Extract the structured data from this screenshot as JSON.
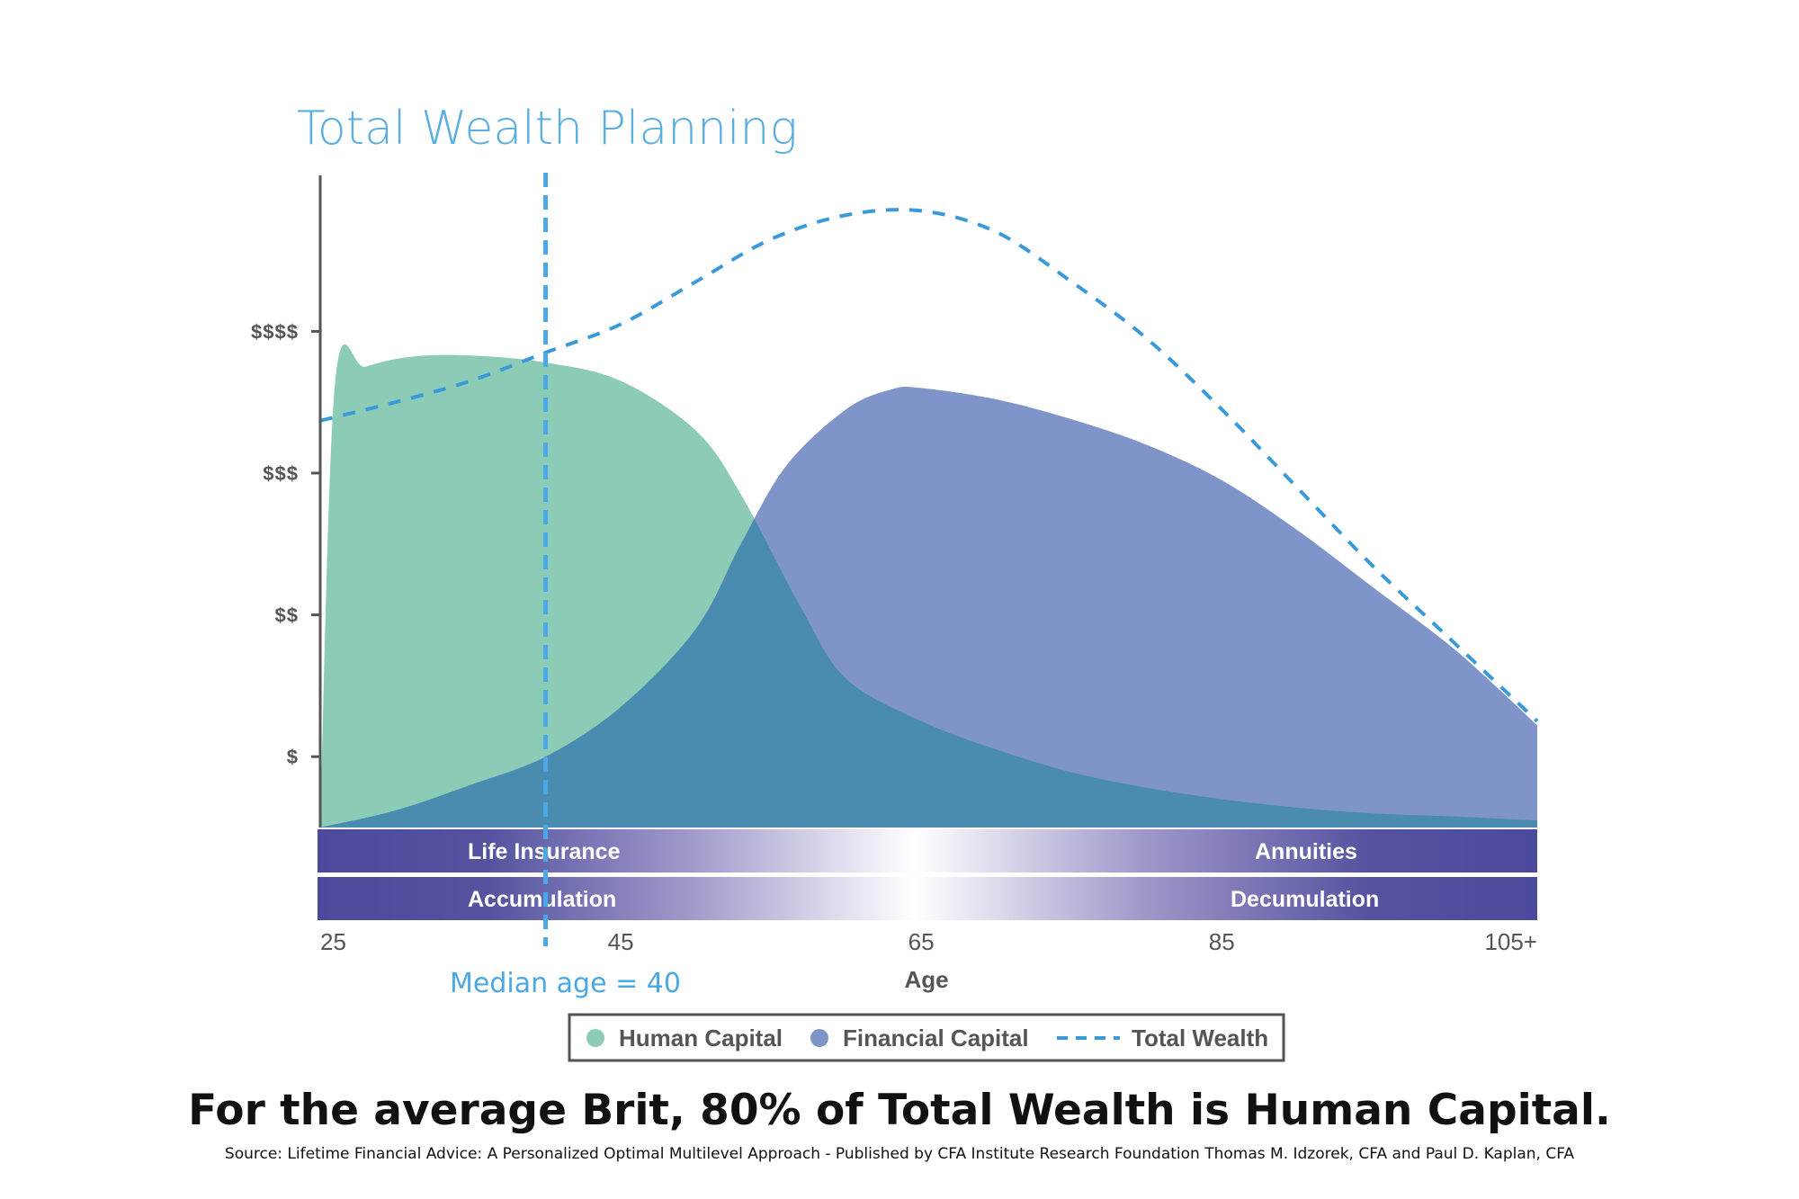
{
  "colors": {
    "title": "#5aaee0",
    "human_capital": "#8ccbb6",
    "financial_capital": "#7f94c8",
    "overlap": "#4a8bb0",
    "total_wealth": "#3a9ad9",
    "median_line": "#4aa8e6",
    "band_dark": "#4b4a9c",
    "band_light": "#ffffff",
    "axis": "#555555"
  },
  "chart_data": {
    "type": "area",
    "title": "Total Wealth Planning",
    "xlabel": "Age",
    "ylabel": "",
    "x_ticks": [
      "25",
      "45",
      "65",
      "85",
      "105+"
    ],
    "y_ticks": [
      "$",
      "$$",
      "$$$",
      "$$$$"
    ],
    "xlim": [
      25,
      106
    ],
    "ylim": [
      0,
      4.6
    ],
    "series": [
      {
        "name": "Human Capital",
        "style": "area",
        "x": [
          25,
          26,
          28,
          31,
          35,
          40,
          45,
          50,
          53,
          57,
          60,
          65,
          70,
          75,
          80,
          85,
          90,
          95,
          100,
          106
        ],
        "y": [
          0.05,
          3.15,
          3.25,
          3.32,
          3.33,
          3.28,
          3.15,
          2.8,
          2.35,
          1.55,
          1.05,
          0.75,
          0.55,
          0.39,
          0.28,
          0.2,
          0.14,
          0.1,
          0.08,
          0.05
        ]
      },
      {
        "name": "Financial Capital",
        "style": "area",
        "x": [
          25,
          30,
          35,
          40,
          45,
          50,
          53,
          56,
          60,
          63,
          65,
          70,
          75,
          80,
          85,
          90,
          95,
          100,
          103,
          106
        ],
        "y": [
          0.0,
          0.12,
          0.3,
          0.5,
          0.85,
          1.4,
          2.0,
          2.55,
          2.95,
          3.09,
          3.1,
          3.02,
          2.88,
          2.7,
          2.45,
          2.1,
          1.7,
          1.3,
          1.02,
          0.72
        ]
      },
      {
        "name": "Total Wealth",
        "style": "dashed-line",
        "x": [
          25,
          30,
          35,
          40,
          45,
          50,
          55,
          60,
          65,
          70,
          75,
          80,
          85,
          90,
          95,
          100,
          106
        ],
        "y": [
          2.87,
          3.0,
          3.15,
          3.35,
          3.55,
          3.85,
          4.15,
          4.32,
          4.35,
          4.2,
          3.85,
          3.45,
          2.95,
          2.4,
          1.85,
          1.35,
          0.75
        ]
      }
    ],
    "annotations": [
      {
        "type": "vertical-dashed-line",
        "x": 40,
        "label": "Median age = 40"
      }
    ],
    "bands": [
      {
        "left_label": "Life Insurance",
        "right_label": "Annuities"
      },
      {
        "left_label": "Accumulation",
        "right_label": "Decumulation"
      }
    ],
    "legend": {
      "placement": "bottom-center",
      "items": [
        {
          "label": "Human Capital",
          "marker": "circle"
        },
        {
          "label": "Financial Capital",
          "marker": "circle"
        },
        {
          "label": "Total Wealth",
          "marker": "dashed-line"
        }
      ]
    },
    "grid": false
  },
  "headline": "For the average Brit, 80% of Total Wealth is Human Capital.",
  "source": "Source: Lifetime Financial Advice: A Personalized Optimal Multilevel Approach - Published by CFA Institute Research Foundation Thomas M. Idzorek, CFA and Paul D. Kaplan, CFA"
}
